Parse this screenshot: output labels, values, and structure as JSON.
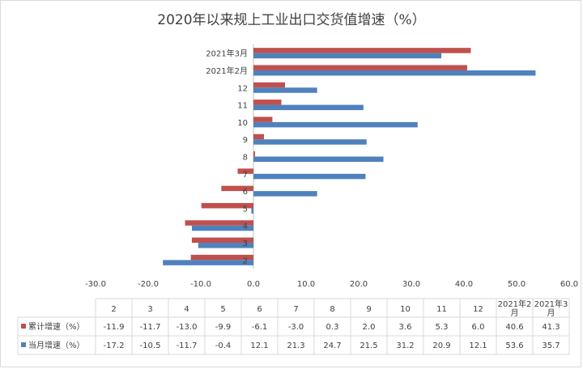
{
  "chart_data": {
    "type": "bar",
    "orientation": "horizontal",
    "title": "2020年以来规上工业出口交货值增速（%）",
    "categories": [
      "2",
      "3",
      "4",
      "5",
      "6",
      "7",
      "8",
      "9",
      "10",
      "11",
      "12",
      "2021年2月",
      "2021年3月"
    ],
    "series": [
      {
        "name": "累计增速（%）",
        "color": "#c0504d",
        "values": [
          -11.9,
          -11.7,
          -13.0,
          -9.9,
          -6.1,
          -3.0,
          0.3,
          2.0,
          3.6,
          5.3,
          6.0,
          40.6,
          41.3
        ]
      },
      {
        "name": "当月增速（%）",
        "color": "#4f81bd",
        "values": [
          -17.2,
          -10.5,
          -11.7,
          -0.4,
          12.1,
          21.3,
          24.7,
          21.5,
          31.2,
          20.9,
          12.1,
          53.6,
          35.7
        ]
      }
    ],
    "xlim": [
      -30,
      60
    ],
    "xticks": [
      -30,
      -20,
      -10,
      0,
      10,
      20,
      30,
      40,
      50,
      60
    ],
    "xtick_labels": [
      "-30.0",
      "-20.0",
      "-10.0",
      "0.0",
      "10.0",
      "20.0",
      "30.0",
      "40.0",
      "50.0",
      "60.0"
    ],
    "table_header": [
      "2",
      "3",
      "4",
      "5",
      "6",
      "7",
      "8",
      "9",
      "10",
      "11",
      "12",
      "2021年2|月",
      "2021年3|月"
    ],
    "table_rows": [
      [
        "-11.9",
        "-11.7",
        "-13.0",
        "-9.9",
        "-6.1",
        "-3.0",
        "0.3",
        "2.0",
        "3.6",
        "5.3",
        "6.0",
        "40.6",
        "41.3"
      ],
      [
        "-17.2",
        "-10.5",
        "-11.7",
        "-0.4",
        "12.1",
        "21.3",
        "24.7",
        "21.5",
        "31.2",
        "20.9",
        "12.1",
        "53.6",
        "35.7"
      ]
    ],
    "grid": false,
    "legend": "table-left"
  }
}
